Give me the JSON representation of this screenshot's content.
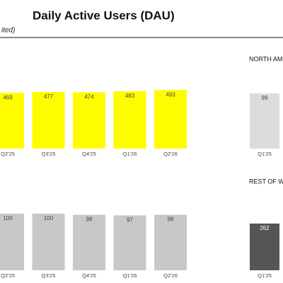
{
  "title": "Daily Active Users (DAU)",
  "subtitle": "ited)",
  "chart_data": [
    {
      "type": "bar",
      "categories": [
        "Q2'25",
        "Q3'25",
        "Q4'25",
        "Q1'26",
        "Q2'26"
      ],
      "values": [
        469,
        477,
        474,
        483,
        493
      ],
      "color": "#fffc00"
    },
    {
      "type": "bar",
      "categories": [
        "Q2'25",
        "Q3'25",
        "Q4'25",
        "Q1'26",
        "Q2'26"
      ],
      "values": [
        100,
        100,
        98,
        97,
        98
      ],
      "color": "#c8c8c8"
    },
    {
      "type": "bar",
      "title": "NORTH AM",
      "categories": [
        "Q1'25"
      ],
      "values": [
        99
      ],
      "color": "#dcdcdc"
    },
    {
      "type": "bar",
      "title": "REST OF W",
      "categories": [
        "Q1'25"
      ],
      "values": [
        262
      ],
      "color": "#555555"
    }
  ]
}
